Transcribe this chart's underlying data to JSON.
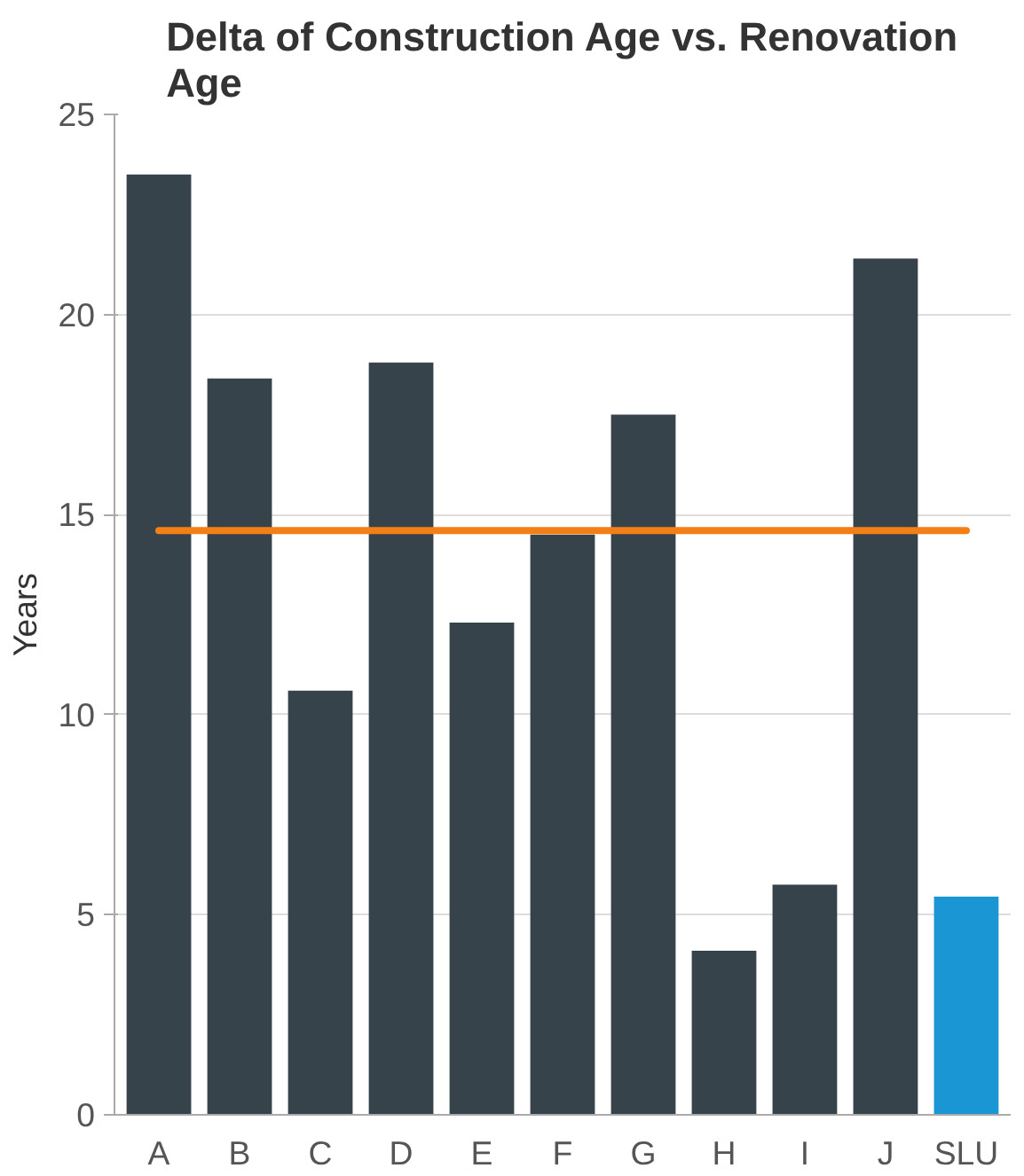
{
  "chart_data": {
    "type": "bar",
    "title": "Delta of Construction Age vs. Renovation Age",
    "ylabel": "Years",
    "categories": [
      "A",
      "B",
      "C",
      "D",
      "E",
      "F",
      "G",
      "H",
      "I",
      "J",
      "SLU"
    ],
    "values": [
      23.5,
      18.4,
      10.6,
      18.8,
      12.3,
      14.5,
      17.5,
      4.1,
      5.75,
      21.4,
      5.45
    ],
    "colors": [
      "#37434b",
      "#37434b",
      "#37434b",
      "#37434b",
      "#37434b",
      "#37434b",
      "#37434b",
      "#37434b",
      "#37434b",
      "#37434b",
      "#1a96d4"
    ],
    "ylim": [
      0,
      25
    ],
    "yticks": [
      0,
      5,
      10,
      15,
      20,
      25
    ],
    "grid": "y",
    "ref_lines": [
      {
        "axis": "y",
        "value": 14.6,
        "color": "#f57f17"
      }
    ]
  }
}
